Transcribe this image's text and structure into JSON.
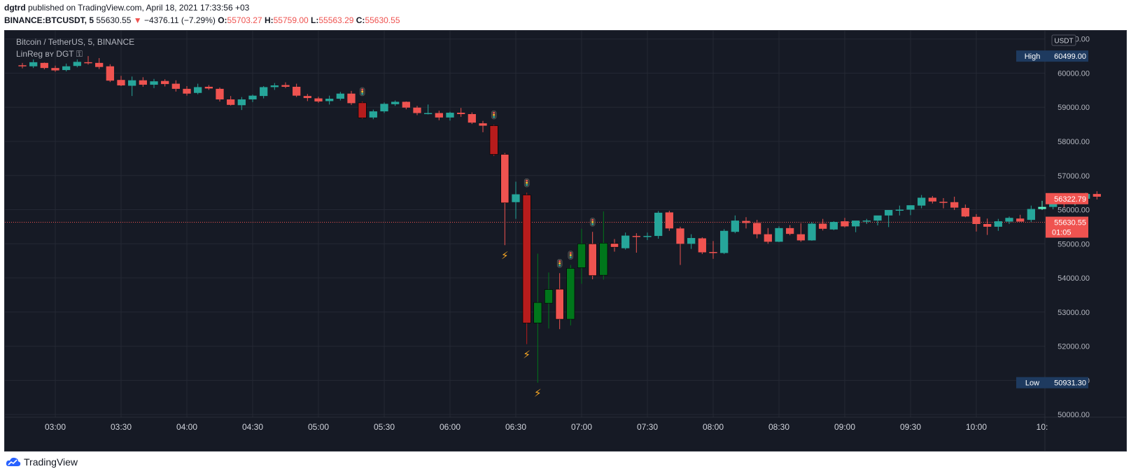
{
  "header": {
    "publisher": "dgtrd",
    "published_text": "published on TradingView.com, April 18, 2021 17:33:56 +03",
    "symbol": "BINANCE:BTCUSDT, 5",
    "last": "55630.55",
    "change_arrow": "▼",
    "change": "−4376.11 (−7.29%)",
    "o_label": "O:",
    "o_value": "55703.27",
    "h_label": "H:",
    "h_value": "55759.00",
    "l_label": "L:",
    "l_value": "55563.29",
    "c_label": "C:",
    "c_value": "55630.55"
  },
  "legend": {
    "title": "Bitcoin / TetherUS, 5, BINANCE",
    "indicator": "LinReg ʙʏ DGT ⚿"
  },
  "footer": {
    "brand": "TradingView"
  },
  "colors": {
    "background": "#161a25",
    "up": "#26a69a",
    "down": "#ef5350",
    "up_signal": "#00761b",
    "down_signal": "#b71c1c",
    "grid": "#242834",
    "bright_up": "#5ef5c8"
  },
  "chart_data": {
    "type": "candlestick",
    "currency": "USDT",
    "ylim": [
      49920,
      61240
    ],
    "yticks": [
      "61000.00",
      "60000.00",
      "59000.00",
      "58000.00",
      "57000.00",
      "56000.00",
      "55000.00",
      "54000.00",
      "53000.00",
      "52000.00",
      "51000.00",
      "50000.00"
    ],
    "xticks": [
      "03:00",
      "03:30",
      "04:00",
      "04:30",
      "05:00",
      "05:30",
      "06:00",
      "06:30",
      "07:00",
      "07:30",
      "08:00",
      "08:30",
      "09:00",
      "09:30",
      "10:00",
      "10:"
    ],
    "x_start": "02:45",
    "interval_minutes": 5,
    "high_label": "High",
    "high_value": "60499.00",
    "low_label": "Low",
    "low_value": "50931.30",
    "price_label": "56322.79",
    "last_label": "55630.55",
    "countdown": "01:05",
    "ohlc": [
      [
        60230,
        60300,
        60140,
        60220
      ],
      [
        60200,
        60400,
        60150,
        60320
      ],
      [
        60300,
        60310,
        60110,
        60150
      ],
      [
        60150,
        60220,
        60040,
        60080
      ],
      [
        60090,
        60280,
        60050,
        60200
      ],
      [
        60210,
        60400,
        60170,
        60330
      ],
      [
        60320,
        60500,
        60250,
        60310
      ],
      [
        60300,
        60440,
        60120,
        60180
      ],
      [
        60200,
        60260,
        59740,
        59780
      ],
      [
        59800,
        59920,
        59620,
        59640
      ],
      [
        59630,
        59900,
        59330,
        59790
      ],
      [
        59790,
        59880,
        59600,
        59660
      ],
      [
        59660,
        59830,
        59560,
        59760
      ],
      [
        59770,
        59820,
        59610,
        59680
      ],
      [
        59690,
        59790,
        59460,
        59540
      ],
      [
        59540,
        59620,
        59340,
        59400
      ],
      [
        59420,
        59690,
        59380,
        59590
      ],
      [
        59600,
        59650,
        59510,
        59550
      ],
      [
        59540,
        59580,
        59170,
        59230
      ],
      [
        59230,
        59330,
        59050,
        59070
      ],
      [
        59060,
        59300,
        58920,
        59230
      ],
      [
        59230,
        59370,
        59150,
        59340
      ],
      [
        59330,
        59620,
        59260,
        59590
      ],
      [
        59590,
        59710,
        59510,
        59640
      ],
      [
        59650,
        59730,
        59560,
        59600
      ],
      [
        59600,
        59690,
        59300,
        59340
      ],
      [
        59330,
        59390,
        59180,
        59270
      ],
      [
        59260,
        59310,
        59130,
        59170
      ],
      [
        59180,
        59340,
        59080,
        59250
      ],
      [
        59250,
        59450,
        59200,
        59400
      ],
      [
        59400,
        59480,
        59070,
        59120
      ],
      [
        59130,
        59170,
        58660,
        58690
      ],
      [
        58700,
        58930,
        58650,
        58880
      ],
      [
        58880,
        59140,
        58830,
        59100
      ],
      [
        59090,
        59200,
        59040,
        59160
      ],
      [
        59160,
        59170,
        58940,
        58990
      ],
      [
        58990,
        59040,
        58770,
        58830
      ],
      [
        58830,
        59080,
        58790,
        58830
      ],
      [
        58830,
        58900,
        58620,
        58700
      ],
      [
        58700,
        58870,
        58610,
        58840
      ],
      [
        58840,
        58980,
        58720,
        58800
      ],
      [
        58800,
        58850,
        58510,
        58550
      ],
      [
        58530,
        58600,
        58270,
        58460
      ],
      [
        58460,
        58490,
        57570,
        57620
      ],
      [
        57620,
        57660,
        54960,
        56200
      ],
      [
        56220,
        56820,
        55730,
        56450
      ],
      [
        56430,
        56500,
        52060,
        52680
      ],
      [
        52680,
        54710,
        50930,
        53280
      ],
      [
        53260,
        54160,
        52520,
        53660
      ],
      [
        53670,
        54140,
        52500,
        52790
      ],
      [
        52790,
        54380,
        52610,
        54280
      ],
      [
        54300,
        55440,
        53830,
        55000
      ],
      [
        55000,
        55350,
        53960,
        54070
      ],
      [
        54080,
        55950,
        53950,
        55020
      ],
      [
        55010,
        55140,
        54770,
        54900
      ],
      [
        54870,
        55330,
        54830,
        55240
      ],
      [
        55230,
        55310,
        54740,
        55220
      ],
      [
        55220,
        55330,
        55110,
        55230
      ],
      [
        55230,
        55960,
        55150,
        55910
      ],
      [
        55920,
        55970,
        55380,
        55450
      ],
      [
        55450,
        55500,
        54380,
        55000
      ],
      [
        55000,
        55280,
        54850,
        55170
      ],
      [
        55160,
        55190,
        54700,
        54750
      ],
      [
        54760,
        55080,
        54560,
        54750
      ],
      [
        54730,
        55430,
        54700,
        55380
      ],
      [
        55350,
        55830,
        55310,
        55680
      ],
      [
        55670,
        55780,
        55450,
        55610
      ],
      [
        55610,
        55700,
        55160,
        55280
      ],
      [
        55280,
        55460,
        55000,
        55060
      ],
      [
        55060,
        55510,
        55050,
        55460
      ],
      [
        55460,
        55550,
        55250,
        55290
      ],
      [
        55280,
        55600,
        55060,
        55100
      ],
      [
        55100,
        55640,
        55090,
        55590
      ],
      [
        55590,
        55730,
        55390,
        55440
      ],
      [
        55420,
        55660,
        55400,
        55640
      ],
      [
        55660,
        55760,
        55480,
        55510
      ],
      [
        55510,
        55660,
        55340,
        55680
      ],
      [
        55680,
        55730,
        55580,
        55680
      ],
      [
        55680,
        55790,
        55540,
        55830
      ],
      [
        55830,
        55970,
        55490,
        55990
      ],
      [
        55990,
        56120,
        55830,
        56000
      ],
      [
        56000,
        56100,
        55840,
        56130
      ],
      [
        56120,
        56430,
        56040,
        56350
      ],
      [
        56350,
        56400,
        56180,
        56240
      ],
      [
        56230,
        56340,
        56040,
        56210
      ],
      [
        56220,
        56380,
        55990,
        56060
      ],
      [
        56050,
        56150,
        55780,
        55800
      ],
      [
        55790,
        55870,
        55360,
        55580
      ],
      [
        55580,
        55740,
        55260,
        55500
      ],
      [
        55500,
        55730,
        55380,
        55660
      ],
      [
        55650,
        55800,
        55580,
        55760
      ],
      [
        55740,
        55850,
        55710,
        55650
      ],
      [
        55700,
        56120,
        55640,
        56020
      ],
      [
        56020,
        56260,
        55990,
        56080
      ],
      [
        56080,
        56360,
        56010,
        56290
      ],
      [
        56280,
        56310,
        56060,
        56180
      ],
      [
        56170,
        56330,
        56120,
        56320
      ],
      [
        56320,
        56500,
        56260,
        56460
      ],
      [
        56460,
        56540,
        56300,
        56380
      ]
    ],
    "signals_up_color": [
      43,
      44,
      47,
      48,
      49,
      50,
      51,
      52,
      53,
      54
    ],
    "signals_down_color": [
      31,
      43,
      46
    ],
    "lamps": [
      31,
      43,
      46,
      49,
      50,
      52
    ],
    "bolts": [
      44,
      46,
      47
    ]
  }
}
